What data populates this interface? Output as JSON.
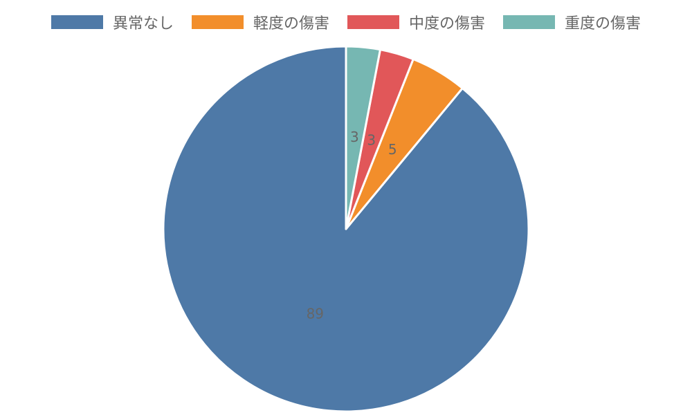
{
  "chart_data": {
    "type": "pie",
    "categories": [
      "異常なし",
      "軽度の傷害",
      "中度の傷害",
      "重度の傷害"
    ],
    "values": [
      89,
      5,
      3,
      3
    ],
    "colors": [
      "#4e79a7",
      "#f28e2b",
      "#e15759",
      "#76b7b2"
    ],
    "legend_position": "top"
  }
}
